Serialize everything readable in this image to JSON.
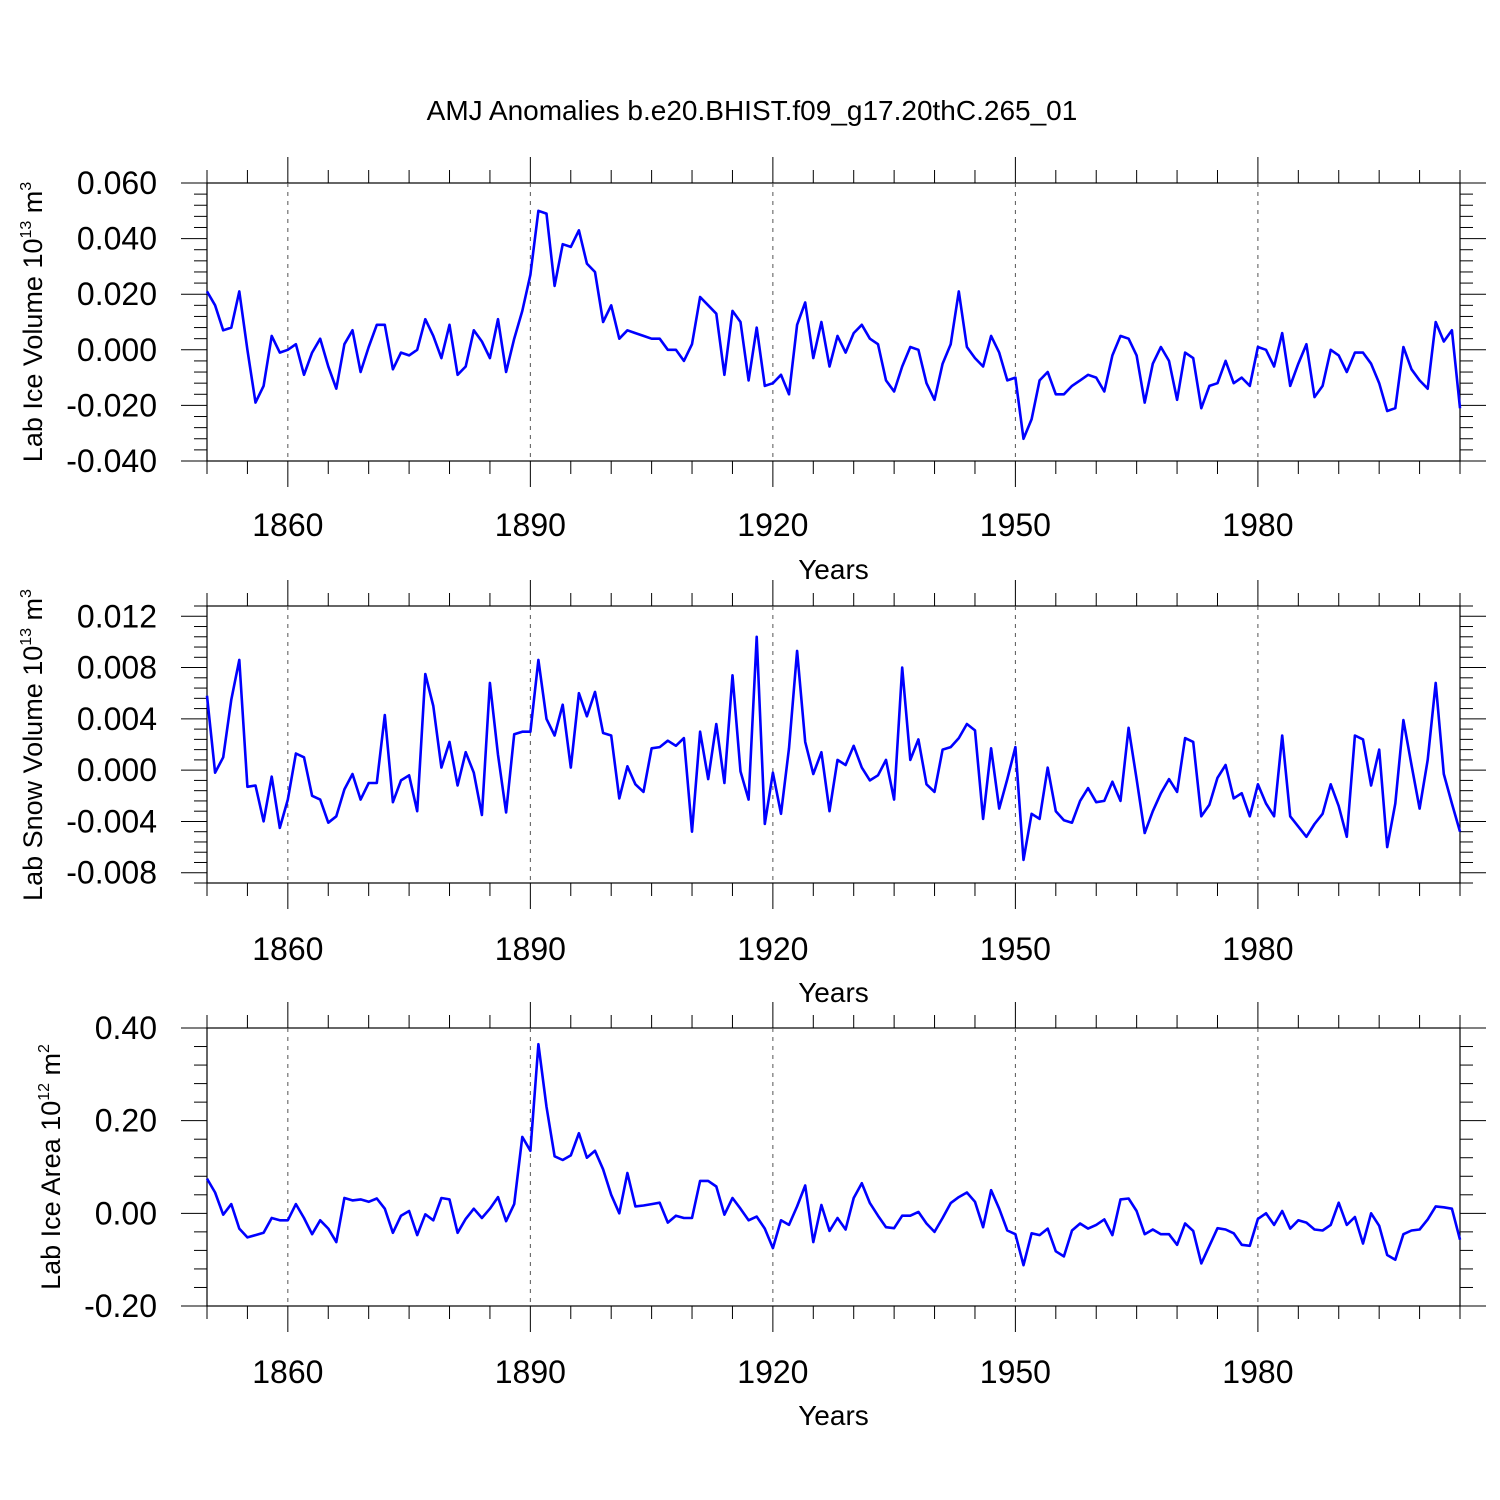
{
  "title": "AMJ Anomalies b.e20.BHIST.f09_g17.20thC.265_01",
  "chart_data": [
    {
      "type": "line",
      "title": "AMJ Anomalies b.e20.BHIST.f09_g17.20thC.265_01",
      "xlabel": "Years",
      "ylabel": "Lab Ice Volume 10",
      "ylabel_unit_prefix": "m",
      "ylabel_exp": "13",
      "ylabel_unit_exp": "3",
      "xlim": [
        1850,
        2005
      ],
      "ylim": [
        -0.04,
        0.06
      ],
      "yticks": [
        -0.04,
        -0.02,
        0.0,
        0.02,
        0.04,
        0.06
      ],
      "ytick_labels": [
        "-0.040",
        "-0.020",
        "0.000",
        "0.020",
        "0.040",
        "0.060"
      ],
      "xticks": [
        1860,
        1890,
        1920,
        1950,
        1980
      ],
      "xtick_labels": [
        "1860",
        "1890",
        "1920",
        "1950",
        "1980"
      ],
      "grid": "dashed vertical at major x ticks",
      "line_color": "#0000ff",
      "x_start": 1850,
      "values": [
        0.021,
        0.016,
        0.007,
        0.008,
        0.021,
        0.0,
        -0.019,
        -0.013,
        0.005,
        -0.001,
        0.0,
        0.002,
        -0.009,
        -0.001,
        0.004,
        -0.006,
        -0.014,
        0.002,
        0.007,
        -0.008,
        0.001,
        0.009,
        0.009,
        -0.007,
        -0.001,
        -0.002,
        0.0,
        0.011,
        0.005,
        -0.003,
        0.009,
        -0.009,
        -0.006,
        0.007,
        0.003,
        -0.003,
        0.011,
        -0.008,
        0.004,
        0.014,
        0.027,
        0.05,
        0.049,
        0.023,
        0.038,
        0.037,
        0.043,
        0.031,
        0.028,
        0.01,
        0.016,
        0.004,
        0.007,
        0.006,
        0.005,
        0.004,
        0.004,
        0.0,
        0.0,
        -0.004,
        0.002,
        0.019,
        0.016,
        0.013,
        -0.009,
        0.014,
        0.01,
        -0.011,
        0.008,
        -0.013,
        -0.012,
        -0.009,
        -0.016,
        0.009,
        0.017,
        -0.003,
        0.01,
        -0.006,
        0.005,
        -0.001,
        0.006,
        0.009,
        0.004,
        0.002,
        -0.011,
        -0.015,
        -0.006,
        0.001,
        0.0,
        -0.012,
        -0.018,
        -0.005,
        0.002,
        0.021,
        0.001,
        -0.003,
        -0.006,
        0.005,
        -0.001,
        -0.011,
        -0.01,
        -0.032,
        -0.025,
        -0.011,
        -0.008,
        -0.016,
        -0.016,
        -0.013,
        -0.011,
        -0.009,
        -0.01,
        -0.015,
        -0.002,
        0.005,
        0.004,
        -0.002,
        -0.019,
        -0.005,
        0.001,
        -0.004,
        -0.018,
        -0.001,
        -0.003,
        -0.021,
        -0.013,
        -0.012,
        -0.004,
        -0.012,
        -0.01,
        -0.013,
        0.001,
        0.0,
        -0.006,
        0.006,
        -0.013,
        -0.005,
        0.002,
        -0.017,
        -0.013,
        0.0,
        -0.002,
        -0.008,
        -0.001,
        -0.001,
        -0.005,
        -0.012,
        -0.022,
        -0.021,
        0.001,
        -0.007,
        -0.011,
        -0.014,
        0.01,
        0.003,
        0.007,
        -0.021
      ]
    },
    {
      "type": "line",
      "xlabel": "Years",
      "ylabel": "Lab Snow Volume 10",
      "ylabel_unit_prefix": "m",
      "ylabel_exp": "13",
      "ylabel_unit_exp": "3",
      "xlim": [
        1850,
        2005
      ],
      "ylim": [
        -0.0088,
        0.0128
      ],
      "yticks": [
        -0.008,
        -0.004,
        0.0,
        0.004,
        0.008,
        0.012
      ],
      "ytick_labels": [
        "-0.008",
        "-0.004",
        "0.000",
        "0.004",
        "0.008",
        "0.012"
      ],
      "xticks": [
        1860,
        1890,
        1920,
        1950,
        1980
      ],
      "xtick_labels": [
        "1860",
        "1890",
        "1920",
        "1950",
        "1980"
      ],
      "grid": "dashed vertical at major x ticks",
      "line_color": "#0000ff",
      "x_start": 1850,
      "values": [
        0.0058,
        -0.0002,
        0.001,
        0.0055,
        0.0086,
        -0.0013,
        -0.0012,
        -0.004,
        -0.0005,
        -0.0045,
        -0.0023,
        0.0013,
        0.001,
        -0.002,
        -0.0023,
        -0.0041,
        -0.0036,
        -0.0015,
        -0.0003,
        -0.0023,
        -0.001,
        -0.001,
        0.0043,
        -0.0025,
        -0.0008,
        -0.0004,
        -0.0032,
        0.0075,
        0.005,
        0.0002,
        0.0022,
        -0.0012,
        0.0014,
        -0.0002,
        -0.0035,
        0.0068,
        0.0012,
        -0.0033,
        0.0028,
        0.003,
        0.003,
        0.0086,
        0.004,
        0.0027,
        0.0051,
        0.0002,
        0.006,
        0.0042,
        0.0061,
        0.0029,
        0.0027,
        -0.0022,
        0.0003,
        -0.0011,
        -0.0017,
        0.0017,
        0.0018,
        0.0023,
        0.0019,
        0.0025,
        -0.0048,
        0.003,
        -0.0007,
        0.0036,
        -0.001,
        0.0074,
        -0.0001,
        -0.0023,
        0.0104,
        -0.0042,
        -0.0002,
        -0.0034,
        0.0017,
        0.0093,
        0.0022,
        -0.0003,
        0.0014,
        -0.0032,
        0.0008,
        0.0004,
        0.0019,
        0.0002,
        -0.0008,
        -0.0004,
        0.0008,
        -0.0023,
        0.008,
        0.0008,
        0.0024,
        -0.0011,
        -0.0017,
        0.0016,
        0.0018,
        0.0025,
        0.0036,
        0.0031,
        -0.0038,
        0.0017,
        -0.003,
        -0.0007,
        0.0018,
        -0.007,
        -0.0034,
        -0.0038,
        0.0002,
        -0.0032,
        -0.0039,
        -0.0041,
        -0.0024,
        -0.0014,
        -0.0025,
        -0.0024,
        -0.0009,
        -0.0024,
        0.0033,
        -0.0007,
        -0.0049,
        -0.0032,
        -0.0018,
        -0.0007,
        -0.0017,
        0.0025,
        0.0022,
        -0.0036,
        -0.0027,
        -0.0006,
        0.0004,
        -0.0022,
        -0.0018,
        -0.0036,
        -0.0011,
        -0.0026,
        -0.0036,
        0.0027,
        -0.0036,
        -0.0044,
        -0.0052,
        -0.0042,
        -0.0034,
        -0.0011,
        -0.0028,
        -0.0052,
        0.0027,
        0.0024,
        -0.0012,
        0.0016,
        -0.006,
        -0.0026,
        0.0039,
        0.0004,
        -0.003,
        0.0008,
        0.0068,
        -0.0003,
        -0.0026,
        -0.0048
      ]
    },
    {
      "type": "line",
      "xlabel": "Years",
      "ylabel": "Lab Ice Area 10",
      "ylabel_unit_prefix": "m",
      "ylabel_exp": "12",
      "ylabel_unit_exp": "2",
      "xlim": [
        1850,
        2005
      ],
      "ylim": [
        -0.2,
        0.4
      ],
      "yticks": [
        -0.2,
        0.0,
        0.2,
        0.4
      ],
      "ytick_labels": [
        "-0.20",
        "0.00",
        "0.20",
        "0.40"
      ],
      "xticks": [
        1860,
        1890,
        1920,
        1950,
        1980
      ],
      "xtick_labels": [
        "1860",
        "1890",
        "1920",
        "1950",
        "1980"
      ],
      "grid": "dashed vertical at major x ticks",
      "line_color": "#0000ff",
      "x_start": 1850,
      "values": [
        0.075,
        0.045,
        -0.003,
        0.02,
        -0.033,
        -0.052,
        -0.047,
        -0.042,
        -0.01,
        -0.015,
        -0.015,
        0.02,
        -0.01,
        -0.045,
        -0.015,
        -0.033,
        -0.062,
        0.033,
        0.028,
        0.03,
        0.025,
        0.032,
        0.01,
        -0.042,
        -0.005,
        0.005,
        -0.047,
        -0.002,
        -0.015,
        0.033,
        0.03,
        -0.042,
        -0.012,
        0.01,
        -0.01,
        0.01,
        0.035,
        -0.017,
        0.02,
        0.165,
        0.135,
        0.365,
        0.23,
        0.123,
        0.115,
        0.125,
        0.173,
        0.12,
        0.135,
        0.095,
        0.04,
        0.0,
        0.087,
        0.015,
        0.017,
        0.02,
        0.023,
        -0.02,
        -0.005,
        -0.01,
        -0.01,
        0.07,
        0.07,
        0.058,
        -0.003,
        0.033,
        0.01,
        -0.015,
        -0.007,
        -0.033,
        -0.075,
        -0.015,
        -0.025,
        0.015,
        0.06,
        -0.062,
        0.018,
        -0.038,
        -0.01,
        -0.035,
        0.033,
        0.065,
        0.022,
        -0.005,
        -0.03,
        -0.032,
        -0.005,
        -0.005,
        0.003,
        -0.022,
        -0.04,
        -0.01,
        0.022,
        0.035,
        0.045,
        0.025,
        -0.03,
        0.05,
        0.01,
        -0.037,
        -0.045,
        -0.112,
        -0.043,
        -0.047,
        -0.033,
        -0.082,
        -0.093,
        -0.037,
        -0.022,
        -0.033,
        -0.025,
        -0.013,
        -0.047,
        0.03,
        0.032,
        0.005,
        -0.045,
        -0.035,
        -0.045,
        -0.045,
        -0.068,
        -0.022,
        -0.038,
        -0.108,
        -0.07,
        -0.032,
        -0.035,
        -0.043,
        -0.068,
        -0.07,
        -0.012,
        0.0,
        -0.025,
        0.005,
        -0.033,
        -0.015,
        -0.02,
        -0.035,
        -0.037,
        -0.025,
        0.023,
        -0.025,
        -0.008,
        -0.065,
        0.0,
        -0.027,
        -0.09,
        -0.1,
        -0.045,
        -0.037,
        -0.035,
        -0.013,
        0.015,
        0.013,
        0.01,
        -0.057
      ]
    }
  ]
}
